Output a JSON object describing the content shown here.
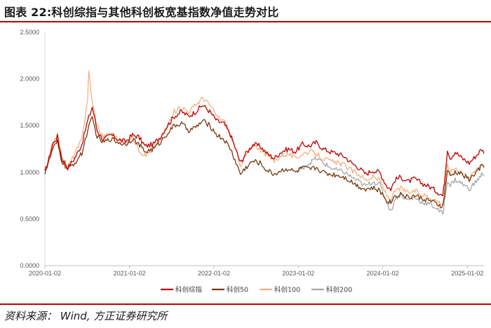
{
  "header": {
    "title": "图表 22:科创综指与其他科创板宽基指数净值走势对比"
  },
  "footer": {
    "source": "资料来源：  Wind,  方正证券研究所"
  },
  "chart_data": {
    "type": "line",
    "ylim": [
      0,
      2.5
    ],
    "yticks": [
      "0.0000",
      "0.5000",
      "1.0000",
      "1.5000",
      "2.0000",
      "2.5000"
    ],
    "xticks": [
      "2020-01-02",
      "2021-01-02",
      "2022-01-02",
      "2023-01-02",
      "2024-01-02",
      "2025-01-02"
    ],
    "xrange": [
      "2020-01-02",
      "2025-03-15"
    ],
    "legend_position": "bottom",
    "grid": false,
    "series": [
      {
        "name": "科创综指",
        "color": "#c00000",
        "points": [
          [
            "2020-01-02",
            1.0
          ],
          [
            "2020-01-20",
            1.15
          ],
          [
            "2020-02-05",
            1.3
          ],
          [
            "2020-02-25",
            1.38
          ],
          [
            "2020-03-15",
            1.15
          ],
          [
            "2020-04-10",
            1.05
          ],
          [
            "2020-05-10",
            1.15
          ],
          [
            "2020-06-10",
            1.3
          ],
          [
            "2020-07-05",
            1.55
          ],
          [
            "2020-07-25",
            1.7
          ],
          [
            "2020-08-15",
            1.45
          ],
          [
            "2020-09-10",
            1.35
          ],
          [
            "2020-10-15",
            1.4
          ],
          [
            "2020-11-15",
            1.35
          ],
          [
            "2020-12-15",
            1.33
          ],
          [
            "2021-01-15",
            1.4
          ],
          [
            "2021-02-10",
            1.38
          ],
          [
            "2021-03-10",
            1.28
          ],
          [
            "2021-04-15",
            1.3
          ],
          [
            "2021-05-15",
            1.38
          ],
          [
            "2021-06-15",
            1.5
          ],
          [
            "2021-07-15",
            1.6
          ],
          [
            "2021-08-15",
            1.65
          ],
          [
            "2021-09-15",
            1.6
          ],
          [
            "2021-10-15",
            1.65
          ],
          [
            "2021-11-15",
            1.72
          ],
          [
            "2021-12-15",
            1.65
          ],
          [
            "2022-01-15",
            1.55
          ],
          [
            "2022-02-15",
            1.52
          ],
          [
            "2022-03-15",
            1.4
          ],
          [
            "2022-04-27",
            1.1
          ],
          [
            "2022-05-20",
            1.2
          ],
          [
            "2022-06-20",
            1.3
          ],
          [
            "2022-07-20",
            1.28
          ],
          [
            "2022-08-20",
            1.2
          ],
          [
            "2022-09-20",
            1.15
          ],
          [
            "2022-10-20",
            1.22
          ],
          [
            "2022-11-20",
            1.25
          ],
          [
            "2022-12-20",
            1.22
          ],
          [
            "2023-01-20",
            1.3
          ],
          [
            "2023-02-20",
            1.28
          ],
          [
            "2023-03-20",
            1.32
          ],
          [
            "2023-04-20",
            1.25
          ],
          [
            "2023-05-20",
            1.22
          ],
          [
            "2023-06-20",
            1.2
          ],
          [
            "2023-07-20",
            1.17
          ],
          [
            "2023-08-20",
            1.1
          ],
          [
            "2023-09-20",
            1.05
          ],
          [
            "2023-10-20",
            0.98
          ],
          [
            "2023-11-20",
            1.02
          ],
          [
            "2023-12-20",
            1.0
          ],
          [
            "2024-01-20",
            0.85
          ],
          [
            "2024-02-06",
            0.82
          ],
          [
            "2024-02-25",
            0.92
          ],
          [
            "2024-03-20",
            0.95
          ],
          [
            "2024-04-20",
            0.9
          ],
          [
            "2024-05-20",
            0.93
          ],
          [
            "2024-06-20",
            0.88
          ],
          [
            "2024-07-20",
            0.85
          ],
          [
            "2024-08-20",
            0.8
          ],
          [
            "2024-09-18",
            0.75
          ],
          [
            "2024-09-25",
            0.9
          ],
          [
            "2024-10-08",
            1.25
          ],
          [
            "2024-10-20",
            1.15
          ],
          [
            "2024-11-10",
            1.22
          ],
          [
            "2024-12-10",
            1.15
          ],
          [
            "2025-01-10",
            1.1
          ],
          [
            "2025-02-10",
            1.18
          ],
          [
            "2025-03-05",
            1.25
          ],
          [
            "2025-03-15",
            1.2
          ]
        ]
      },
      {
        "name": "科创50",
        "color": "#7a3a10",
        "points": [
          [
            "2020-01-02",
            1.0
          ],
          [
            "2020-01-20",
            1.12
          ],
          [
            "2020-02-05",
            1.25
          ],
          [
            "2020-02-25",
            1.32
          ],
          [
            "2020-03-15",
            1.12
          ],
          [
            "2020-04-10",
            1.03
          ],
          [
            "2020-05-10",
            1.1
          ],
          [
            "2020-06-10",
            1.2
          ],
          [
            "2020-07-05",
            1.45
          ],
          [
            "2020-07-25",
            1.58
          ],
          [
            "2020-08-15",
            1.38
          ],
          [
            "2020-09-10",
            1.32
          ],
          [
            "2020-10-15",
            1.36
          ],
          [
            "2020-11-15",
            1.32
          ],
          [
            "2020-12-15",
            1.3
          ],
          [
            "2021-01-15",
            1.36
          ],
          [
            "2021-02-10",
            1.3
          ],
          [
            "2021-03-10",
            1.22
          ],
          [
            "2021-04-15",
            1.25
          ],
          [
            "2021-05-15",
            1.32
          ],
          [
            "2021-06-15",
            1.42
          ],
          [
            "2021-07-15",
            1.5
          ],
          [
            "2021-08-15",
            1.52
          ],
          [
            "2021-09-15",
            1.45
          ],
          [
            "2021-10-15",
            1.48
          ],
          [
            "2021-11-15",
            1.55
          ],
          [
            "2021-12-15",
            1.5
          ],
          [
            "2022-01-15",
            1.4
          ],
          [
            "2022-02-15",
            1.35
          ],
          [
            "2022-03-15",
            1.25
          ],
          [
            "2022-04-27",
            0.98
          ],
          [
            "2022-05-20",
            1.05
          ],
          [
            "2022-06-20",
            1.12
          ],
          [
            "2022-07-20",
            1.1
          ],
          [
            "2022-08-20",
            1.02
          ],
          [
            "2022-09-20",
            0.98
          ],
          [
            "2022-10-20",
            1.02
          ],
          [
            "2022-11-20",
            1.04
          ],
          [
            "2022-12-20",
            1.0
          ],
          [
            "2023-01-20",
            1.05
          ],
          [
            "2023-02-20",
            1.03
          ],
          [
            "2023-03-20",
            1.05
          ],
          [
            "2023-04-20",
            1.0
          ],
          [
            "2023-05-20",
            0.98
          ],
          [
            "2023-06-20",
            0.97
          ],
          [
            "2023-07-20",
            0.95
          ],
          [
            "2023-08-20",
            0.9
          ],
          [
            "2023-09-20",
            0.85
          ],
          [
            "2023-10-20",
            0.82
          ],
          [
            "2023-11-20",
            0.83
          ],
          [
            "2023-12-20",
            0.8
          ],
          [
            "2024-01-20",
            0.7
          ],
          [
            "2024-02-06",
            0.68
          ],
          [
            "2024-02-25",
            0.75
          ],
          [
            "2024-03-20",
            0.77
          ],
          [
            "2024-04-20",
            0.73
          ],
          [
            "2024-05-20",
            0.75
          ],
          [
            "2024-06-20",
            0.72
          ],
          [
            "2024-07-20",
            0.7
          ],
          [
            "2024-08-20",
            0.66
          ],
          [
            "2024-09-18",
            0.63
          ],
          [
            "2024-09-25",
            0.75
          ],
          [
            "2024-10-08",
            1.02
          ],
          [
            "2024-10-20",
            0.95
          ],
          [
            "2024-11-10",
            1.0
          ],
          [
            "2024-12-10",
            0.98
          ],
          [
            "2025-01-10",
            0.92
          ],
          [
            "2025-02-10",
            1.0
          ],
          [
            "2025-03-05",
            1.07
          ],
          [
            "2025-03-15",
            1.05
          ]
        ]
      },
      {
        "name": "科创100",
        "color": "#f4b183",
        "points": [
          [
            "2020-01-02",
            1.0
          ],
          [
            "2020-01-20",
            1.15
          ],
          [
            "2020-02-05",
            1.32
          ],
          [
            "2020-02-25",
            1.4
          ],
          [
            "2020-03-15",
            1.18
          ],
          [
            "2020-04-10",
            1.05
          ],
          [
            "2020-05-10",
            1.2
          ],
          [
            "2020-06-10",
            1.35
          ],
          [
            "2020-07-05",
            1.8
          ],
          [
            "2020-07-10",
            2.08
          ],
          [
            "2020-07-25",
            1.75
          ],
          [
            "2020-08-15",
            1.5
          ],
          [
            "2020-09-10",
            1.38
          ],
          [
            "2020-10-15",
            1.42
          ],
          [
            "2020-11-15",
            1.35
          ],
          [
            "2020-12-15",
            1.3
          ],
          [
            "2021-01-15",
            1.38
          ],
          [
            "2021-02-10",
            1.25
          ],
          [
            "2021-03-10",
            1.18
          ],
          [
            "2021-04-15",
            1.25
          ],
          [
            "2021-05-15",
            1.35
          ],
          [
            "2021-06-15",
            1.5
          ],
          [
            "2021-07-15",
            1.65
          ],
          [
            "2021-08-15",
            1.7
          ],
          [
            "2021-09-15",
            1.65
          ],
          [
            "2021-10-15",
            1.72
          ],
          [
            "2021-11-15",
            1.8
          ],
          [
            "2021-12-15",
            1.72
          ],
          [
            "2022-01-15",
            1.6
          ],
          [
            "2022-02-15",
            1.55
          ],
          [
            "2022-03-15",
            1.4
          ],
          [
            "2022-04-27",
            1.08
          ],
          [
            "2022-05-20",
            1.18
          ],
          [
            "2022-06-20",
            1.28
          ],
          [
            "2022-07-20",
            1.25
          ],
          [
            "2022-08-20",
            1.18
          ],
          [
            "2022-09-20",
            1.12
          ],
          [
            "2022-10-20",
            1.18
          ],
          [
            "2022-11-20",
            1.2
          ],
          [
            "2022-12-20",
            1.15
          ],
          [
            "2023-01-20",
            1.2
          ],
          [
            "2023-02-20",
            1.22
          ],
          [
            "2023-03-20",
            1.2
          ],
          [
            "2023-04-20",
            1.15
          ],
          [
            "2023-05-20",
            1.12
          ],
          [
            "2023-06-20",
            1.1
          ],
          [
            "2023-07-20",
            1.08
          ],
          [
            "2023-08-20",
            1.02
          ],
          [
            "2023-09-20",
            0.98
          ],
          [
            "2023-10-20",
            0.92
          ],
          [
            "2023-11-20",
            0.95
          ],
          [
            "2023-12-20",
            0.92
          ],
          [
            "2024-01-20",
            0.75
          ],
          [
            "2024-02-06",
            0.7
          ],
          [
            "2024-02-25",
            0.8
          ],
          [
            "2024-03-20",
            0.83
          ],
          [
            "2024-04-20",
            0.78
          ],
          [
            "2024-05-20",
            0.8
          ],
          [
            "2024-06-20",
            0.76
          ],
          [
            "2024-07-20",
            0.74
          ],
          [
            "2024-08-20",
            0.7
          ],
          [
            "2024-09-18",
            0.66
          ],
          [
            "2024-09-25",
            0.8
          ],
          [
            "2024-10-08",
            1.08
          ],
          [
            "2024-10-20",
            1.0
          ],
          [
            "2024-11-10",
            1.05
          ],
          [
            "2024-12-10",
            1.0
          ],
          [
            "2025-01-10",
            0.95
          ],
          [
            "2025-02-10",
            1.02
          ],
          [
            "2025-03-05",
            1.1
          ],
          [
            "2025-03-15",
            1.07
          ]
        ]
      },
      {
        "name": "科创200",
        "color": "#a6a6a6",
        "points": [
          [
            "2022-12-30",
            1.0
          ],
          [
            "2023-01-20",
            1.05
          ],
          [
            "2023-02-20",
            1.1
          ],
          [
            "2023-03-20",
            1.15
          ],
          [
            "2023-04-20",
            1.1
          ],
          [
            "2023-05-20",
            1.05
          ],
          [
            "2023-06-20",
            1.02
          ],
          [
            "2023-07-20",
            1.0
          ],
          [
            "2023-08-20",
            0.95
          ],
          [
            "2023-09-20",
            0.9
          ],
          [
            "2023-10-20",
            0.85
          ],
          [
            "2023-11-20",
            0.9
          ],
          [
            "2023-12-20",
            0.87
          ],
          [
            "2024-01-20",
            0.68
          ],
          [
            "2024-02-06",
            0.58
          ],
          [
            "2024-02-25",
            0.72
          ],
          [
            "2024-03-20",
            0.76
          ],
          [
            "2024-04-20",
            0.7
          ],
          [
            "2024-05-20",
            0.73
          ],
          [
            "2024-06-20",
            0.68
          ],
          [
            "2024-07-20",
            0.66
          ],
          [
            "2024-08-20",
            0.62
          ],
          [
            "2024-09-18",
            0.55
          ],
          [
            "2024-09-25",
            0.68
          ],
          [
            "2024-10-08",
            0.92
          ],
          [
            "2024-10-20",
            0.86
          ],
          [
            "2024-11-10",
            0.92
          ],
          [
            "2024-12-10",
            0.88
          ],
          [
            "2025-01-10",
            0.82
          ],
          [
            "2025-02-10",
            0.9
          ],
          [
            "2025-03-05",
            0.98
          ],
          [
            "2025-03-15",
            0.96
          ]
        ]
      }
    ]
  }
}
